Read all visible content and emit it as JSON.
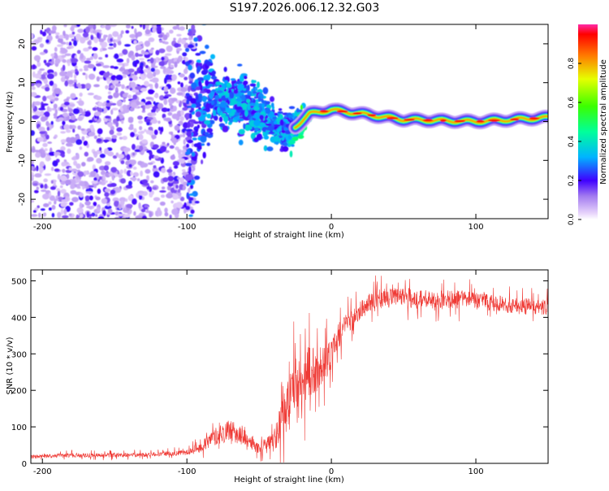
{
  "title": "S197.2026.006.12.32.G03",
  "colors": {
    "snr_line": "#ef3a35",
    "axis": "#000000"
  },
  "chart_data": [
    {
      "type": "heatmap",
      "name": "spectrogram",
      "xlabel": "Height of straight line (km)",
      "ylabel": "Frequency (Hz)",
      "xlim": [
        -208,
        150
      ],
      "ylim": [
        -25,
        25
      ],
      "x_ticks": [
        -200,
        -100,
        0,
        100
      ],
      "x_tick_labels": [
        "-200",
        "-100",
        "0",
        "100"
      ],
      "y_ticks": [
        20,
        10,
        0,
        -10,
        -20
      ],
      "y_tick_labels": [
        "20",
        "10",
        "0",
        "-10",
        "-20"
      ],
      "grid": false,
      "description_of_signal": [
        {
          "x": -205,
          "freq_center": 0,
          "freq_spread": 25,
          "amp": 0.18
        },
        {
          "x": -100,
          "freq_center": 0,
          "freq_spread": 25,
          "amp": 0.22
        },
        {
          "x": -80,
          "freq_center": 7,
          "freq_spread": 6,
          "amp": 0.3
        },
        {
          "x": -55,
          "freq_center": 3,
          "freq_spread": 6,
          "amp": 0.3
        },
        {
          "x": -30,
          "freq_center": -3,
          "freq_spread": 4,
          "amp": 0.3
        },
        {
          "x": -15,
          "freq_center": 2,
          "freq_spread": 1.5,
          "amp": 0.55
        },
        {
          "x": 0,
          "freq_center": 3,
          "freq_spread": 1.2,
          "amp": 0.75
        },
        {
          "x": 50,
          "freq_center": 0.5,
          "freq_spread": 1.0,
          "amp": 0.85
        },
        {
          "x": 100,
          "freq_center": 0,
          "freq_spread": 1.0,
          "amp": 0.9
        },
        {
          "x": 150,
          "freq_center": 1,
          "freq_spread": 1.0,
          "amp": 0.85
        }
      ]
    },
    {
      "type": "colorbar",
      "name": "amplitude-colorbar",
      "label": "Normalized spectral amplitude",
      "range": [
        0,
        1
      ],
      "ticks": [
        0.0,
        0.2,
        0.4,
        0.6,
        0.8
      ],
      "tick_labels": [
        "0.0",
        "0.2",
        "0.4",
        "0.6",
        "0.8"
      ]
    },
    {
      "type": "line",
      "name": "snr",
      "xlabel": "Height of straight line (km)",
      "ylabel": "SNR (10 * v/v)",
      "xlim": [
        -208,
        150
      ],
      "ylim": [
        0,
        530
      ],
      "x_ticks": [
        -200,
        -100,
        0,
        100
      ],
      "x_tick_labels": [
        "-200",
        "-100",
        "0",
        "100"
      ],
      "y_ticks": [
        0,
        100,
        200,
        300,
        400,
        500
      ],
      "y_tick_labels": [
        "0",
        "100",
        "200",
        "300",
        "400",
        "500"
      ],
      "grid": false,
      "series": [
        {
          "name": "SNR",
          "x": [
            -208,
            -180,
            -150,
            -120,
            -100,
            -90,
            -80,
            -70,
            -60,
            -50,
            -40,
            -35,
            -30,
            -25,
            -20,
            -15,
            -10,
            -5,
            0,
            5,
            10,
            20,
            30,
            50,
            70,
            90,
            110,
            130,
            150
          ],
          "mean": [
            18,
            22,
            22,
            25,
            30,
            45,
            75,
            90,
            70,
            40,
            60,
            110,
            170,
            230,
            210,
            260,
            250,
            280,
            300,
            350,
            380,
            420,
            450,
            455,
            445,
            450,
            440,
            430,
            430
          ],
          "spread": [
            10,
            12,
            12,
            12,
            15,
            30,
            50,
            60,
            45,
            30,
            60,
            120,
            140,
            150,
            130,
            150,
            120,
            110,
            90,
            70,
            60,
            50,
            55,
            55,
            55,
            50,
            45,
            45,
            45
          ]
        }
      ]
    }
  ]
}
